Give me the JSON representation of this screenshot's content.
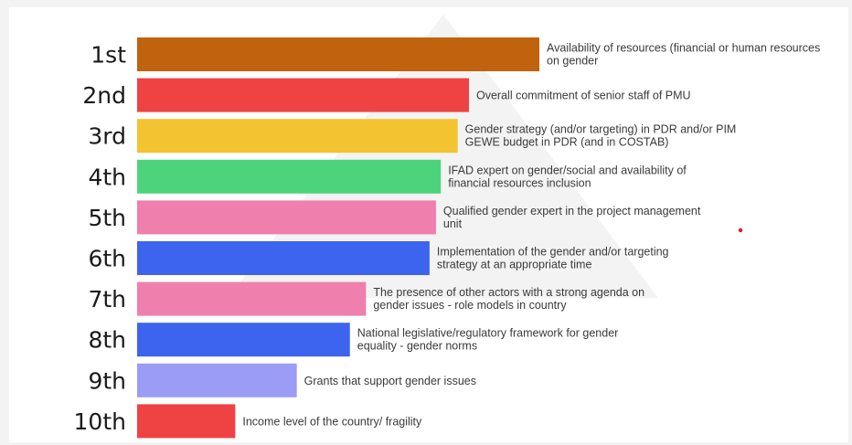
{
  "chart_data": {
    "type": "bar",
    "orientation": "horizontal",
    "title": "",
    "xlabel": "",
    "ylabel": "",
    "grid": false,
    "legend": "none",
    "axis_shown": false,
    "categories": [
      "1st",
      "2nd",
      "3rd",
      "4th",
      "5th",
      "6th",
      "7th",
      "8th",
      "9th",
      "10th"
    ],
    "values": [
      100,
      82.5,
      79.7,
      75.5,
      74.3,
      72.7,
      56.9,
      52.9,
      39.7,
      24.4
    ],
    "labels": [
      [
        "Availability of resources (financial or human resources",
        "on gender"
      ],
      [
        "Overall commitment of senior staff of PMU"
      ],
      [
        "Gender strategy (and/or targeting) in PDR and/or PIM",
        "GEWE budget in PDR (and in COSTAB)"
      ],
      [
        "IFAD expert on gender/social and availability of",
        "financial resources inclusion"
      ],
      [
        "Qualified gender expert in the project management",
        "unit"
      ],
      [
        "Implementation of the gender and/or targeting",
        "strategy at an appropriate time"
      ],
      [
        "The presence of other actors with a strong agenda on",
        "gender issues - role models in country"
      ],
      [
        "National legislative/regulatory framework for gender",
        "equality - gender norms"
      ],
      [
        "Grants that support gender issues"
      ],
      [
        "Income level of the country/ fragility"
      ]
    ],
    "colors": [
      "#c0620e",
      "#ee4243",
      "#f4c331",
      "#4ed37d",
      "#ef7fac",
      "#3c64ee",
      "#ef7fac",
      "#3c64ee",
      "#9b9cf6",
      "#ee4243"
    ],
    "background_mark_color": "#eaeaea",
    "dot_color": "#e8102d"
  }
}
